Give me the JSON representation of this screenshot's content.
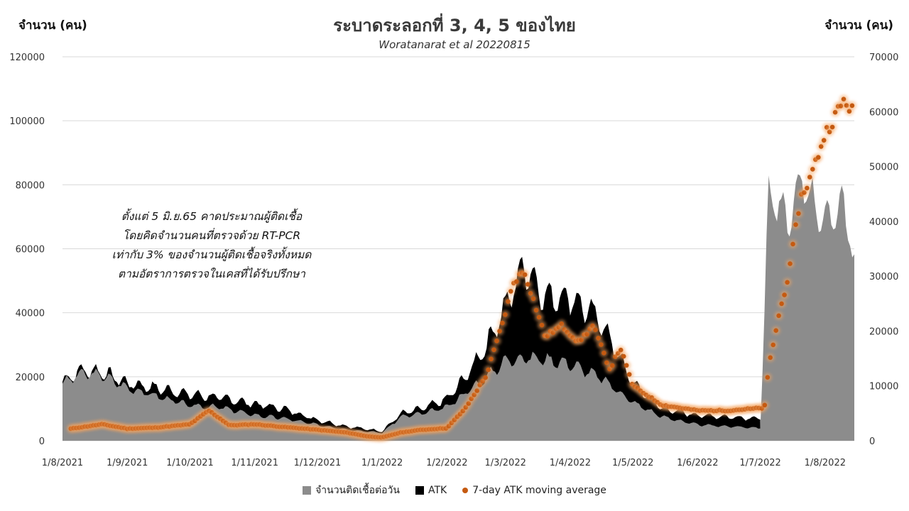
{
  "chart_data": {
    "type": "area",
    "title": "ระบาดระลอกที่ 3, 4, 5 ของไทย",
    "subtitle": "Woratanarat et al 20220815",
    "ylabel_left": "จำนวน (คน)",
    "ylabel_right": "จำนวน (คน)",
    "ylim_left": [
      0,
      120000
    ],
    "ylim_right": [
      0,
      70000
    ],
    "y_ticks_left": [
      "0",
      "20000",
      "40000",
      "60000",
      "80000",
      "100000",
      "120000"
    ],
    "y_ticks_right": [
      "0",
      "10000",
      "20000",
      "30000",
      "40000",
      "50000",
      "60000",
      "70000"
    ],
    "x_ticks": [
      "1/8/2021",
      "1/9/2021",
      "1/10/2021",
      "1/11/2021",
      "1/12/2021",
      "1/1/2022",
      "1/2/2022",
      "1/3/2022",
      "1/4/2022",
      "1/5/2022",
      "1/6/2022",
      "1/7/2022",
      "1/8/2022"
    ],
    "grid": true,
    "legend_position": "bottom",
    "annotation": [
      "ตั้งแต่ 5 มิ.ย.65 คาดประมาณผู้ติดเชื้อ",
      "โดยคิดจำนวนคนที่ตรวจด้วย RT-PCR",
      "เท่ากับ 3% ของจำนวนผู้ติดเชื้อจริงทั้งหมด",
      "ตามอัตราการตรวจในเคสที่ได้รับปรึกษา"
    ],
    "series": [
      {
        "name": "จำนวนติดเชื้อต่อวัน",
        "axis": "left",
        "color": "#8c8c8c",
        "points": [
          [
            "2021-08-01",
            18000
          ],
          [
            "2021-08-10",
            21000
          ],
          [
            "2021-08-20",
            20500
          ],
          [
            "2021-09-01",
            16500
          ],
          [
            "2021-09-15",
            14000
          ],
          [
            "2021-10-01",
            11000
          ],
          [
            "2021-10-15",
            10500
          ],
          [
            "2021-11-01",
            8000
          ],
          [
            "2021-11-15",
            7000
          ],
          [
            "2021-12-01",
            5000
          ],
          [
            "2021-12-15",
            3500
          ],
          [
            "2022-01-01",
            2500
          ],
          [
            "2022-01-10",
            7500
          ],
          [
            "2022-01-20",
            8500
          ],
          [
            "2022-02-01",
            10500
          ],
          [
            "2022-02-10",
            15000
          ],
          [
            "2022-02-20",
            20000
          ],
          [
            "2022-03-01",
            25000
          ],
          [
            "2022-03-10",
            26000
          ],
          [
            "2022-03-20",
            25500
          ],
          [
            "2022-04-01",
            24000
          ],
          [
            "2022-04-15",
            20000
          ],
          [
            "2022-05-01",
            12000
          ],
          [
            "2022-05-15",
            7500
          ],
          [
            "2022-06-01",
            5000
          ],
          [
            "2022-06-15",
            4500
          ],
          [
            "2022-07-01",
            4000
          ],
          [
            "2022-07-05",
            78000
          ],
          [
            "2022-07-15",
            68000
          ],
          [
            "2022-07-21",
            82000
          ],
          [
            "2022-08-01",
            68000
          ],
          [
            "2022-08-10",
            75000
          ],
          [
            "2022-08-15",
            55000
          ]
        ]
      },
      {
        "name": "ATK",
        "axis": "left",
        "color": "#000000",
        "points": [
          [
            "2021-08-01",
            18500
          ],
          [
            "2021-08-10",
            22000
          ],
          [
            "2021-08-20",
            21500
          ],
          [
            "2021-09-01",
            18000
          ],
          [
            "2021-09-15",
            16500
          ],
          [
            "2021-10-01",
            14500
          ],
          [
            "2021-10-15",
            13500
          ],
          [
            "2021-11-01",
            11500
          ],
          [
            "2021-11-15",
            10000
          ],
          [
            "2021-12-01",
            6500
          ],
          [
            "2021-12-15",
            4500
          ],
          [
            "2022-01-01",
            3000
          ],
          [
            "2022-01-10",
            8500
          ],
          [
            "2022-01-20",
            10000
          ],
          [
            "2022-02-01",
            13000
          ],
          [
            "2022-02-10",
            20000
          ],
          [
            "2022-02-20",
            30000
          ],
          [
            "2022-03-01",
            42000
          ],
          [
            "2022-03-10",
            55000
          ],
          [
            "2022-03-20",
            45000
          ],
          [
            "2022-04-01",
            45000
          ],
          [
            "2022-04-15",
            38000
          ],
          [
            "2022-05-01",
            18000
          ],
          [
            "2022-05-15",
            10000
          ],
          [
            "2022-06-01",
            8000
          ],
          [
            "2022-06-15",
            7500
          ],
          [
            "2022-07-01",
            7000
          ]
        ]
      },
      {
        "name": "7-day ATK moving average",
        "axis": "right",
        "color": "#c55a11",
        "points": [
          [
            "2021-08-05",
            2200
          ],
          [
            "2021-08-20",
            3000
          ],
          [
            "2021-09-01",
            2200
          ],
          [
            "2021-09-15",
            2400
          ],
          [
            "2021-10-01",
            3000
          ],
          [
            "2021-10-10",
            5500
          ],
          [
            "2021-10-20",
            2800
          ],
          [
            "2021-11-01",
            3000
          ],
          [
            "2021-11-15",
            2500
          ],
          [
            "2021-12-01",
            2000
          ],
          [
            "2021-12-15",
            1500
          ],
          [
            "2021-12-25",
            800
          ],
          [
            "2022-01-01",
            600
          ],
          [
            "2022-01-10",
            1500
          ],
          [
            "2022-01-20",
            2000
          ],
          [
            "2022-02-01",
            2300
          ],
          [
            "2022-02-10",
            6000
          ],
          [
            "2022-02-20",
            12000
          ],
          [
            "2022-02-28",
            22000
          ],
          [
            "2022-03-05",
            29000
          ],
          [
            "2022-03-10",
            31000
          ],
          [
            "2022-03-15",
            25000
          ],
          [
            "2022-03-20",
            19000
          ],
          [
            "2022-03-28",
            21000
          ],
          [
            "2022-04-05",
            18000
          ],
          [
            "2022-04-12",
            21000
          ],
          [
            "2022-04-20",
            13000
          ],
          [
            "2022-04-25",
            17000
          ],
          [
            "2022-05-01",
            10000
          ],
          [
            "2022-05-15",
            6500
          ],
          [
            "2022-06-01",
            5500
          ],
          [
            "2022-06-15",
            5500
          ],
          [
            "2022-07-03",
            6000
          ],
          [
            "2022-07-05",
            13500
          ],
          [
            "2022-07-10",
            23000
          ],
          [
            "2022-07-15",
            31000
          ],
          [
            "2022-07-20",
            44000
          ],
          [
            "2022-07-25",
            48000
          ],
          [
            "2022-08-01",
            56000
          ],
          [
            "2022-08-10",
            62000
          ],
          [
            "2022-08-15",
            60000
          ]
        ]
      }
    ]
  }
}
